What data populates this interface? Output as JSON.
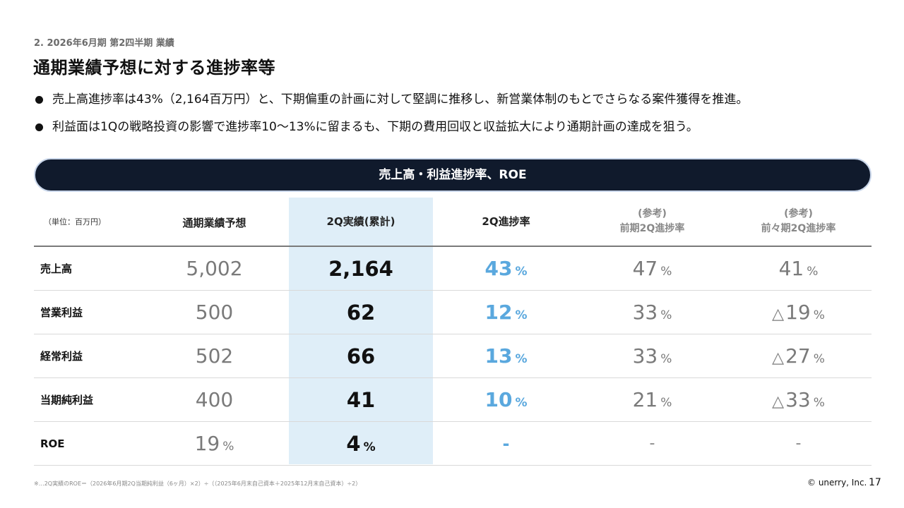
{
  "header": {
    "section": "2. 2026年6月期 第2四半期 業績",
    "title": "通期業績予想に対する進捗率等"
  },
  "bullets": [
    "売上高進捗率は43%（2,164百万円）と、下期偏重の計画に対して堅調に推移し、新営業体制のもとでさらなる案件獲得を推進。",
    "利益面は1Qの戦略投資の影響で進捗率10〜13%に留まるも、下期の費用回収と収益拡大により通期計画の達成を狙う。"
  ],
  "banner": "売上高・利益進捗率、ROE",
  "table": {
    "unit": "（単位：百万円）",
    "headers": {
      "forecast": "通期業績予想",
      "actual": "2Q実績(累計)",
      "progress": "2Q進捗率",
      "prev_ref": "(参考)",
      "prev": "前期2Q進捗率",
      "prev2_ref": "(参考)",
      "prev2": "前々期2Q進捗率"
    },
    "rows": [
      {
        "label": "売上高",
        "forecast": "5,002",
        "actual": "2,164",
        "progress": "43",
        "prev": "47",
        "prev2": "41"
      },
      {
        "label": "営業利益",
        "forecast": "500",
        "actual": "62",
        "progress": "12",
        "prev": "33",
        "prev2_tri": "△",
        "prev2": "19"
      },
      {
        "label": "経常利益",
        "forecast": "502",
        "actual": "66",
        "progress": "13",
        "prev": "33",
        "prev2_tri": "△",
        "prev2": "27"
      },
      {
        "label": "当期純利益",
        "forecast": "400",
        "actual": "41",
        "progress": "10",
        "prev": "21",
        "prev2_tri": "△",
        "prev2": "33"
      },
      {
        "label": "ROE",
        "forecast": "19",
        "actual": "4",
        "progress_dash": "-",
        "prev_dash": "-",
        "prev2_dash": "-"
      }
    ],
    "pct": "%"
  },
  "footer": {
    "note": "※…2Q実績のROE＝（2026年6月期2Q当期純利益（6ヶ月）×2）÷（（2025年6月末自己資本＋2025年12月末自己資本）÷2）",
    "copyright": "© unerry, Inc.",
    "page": "17"
  }
}
